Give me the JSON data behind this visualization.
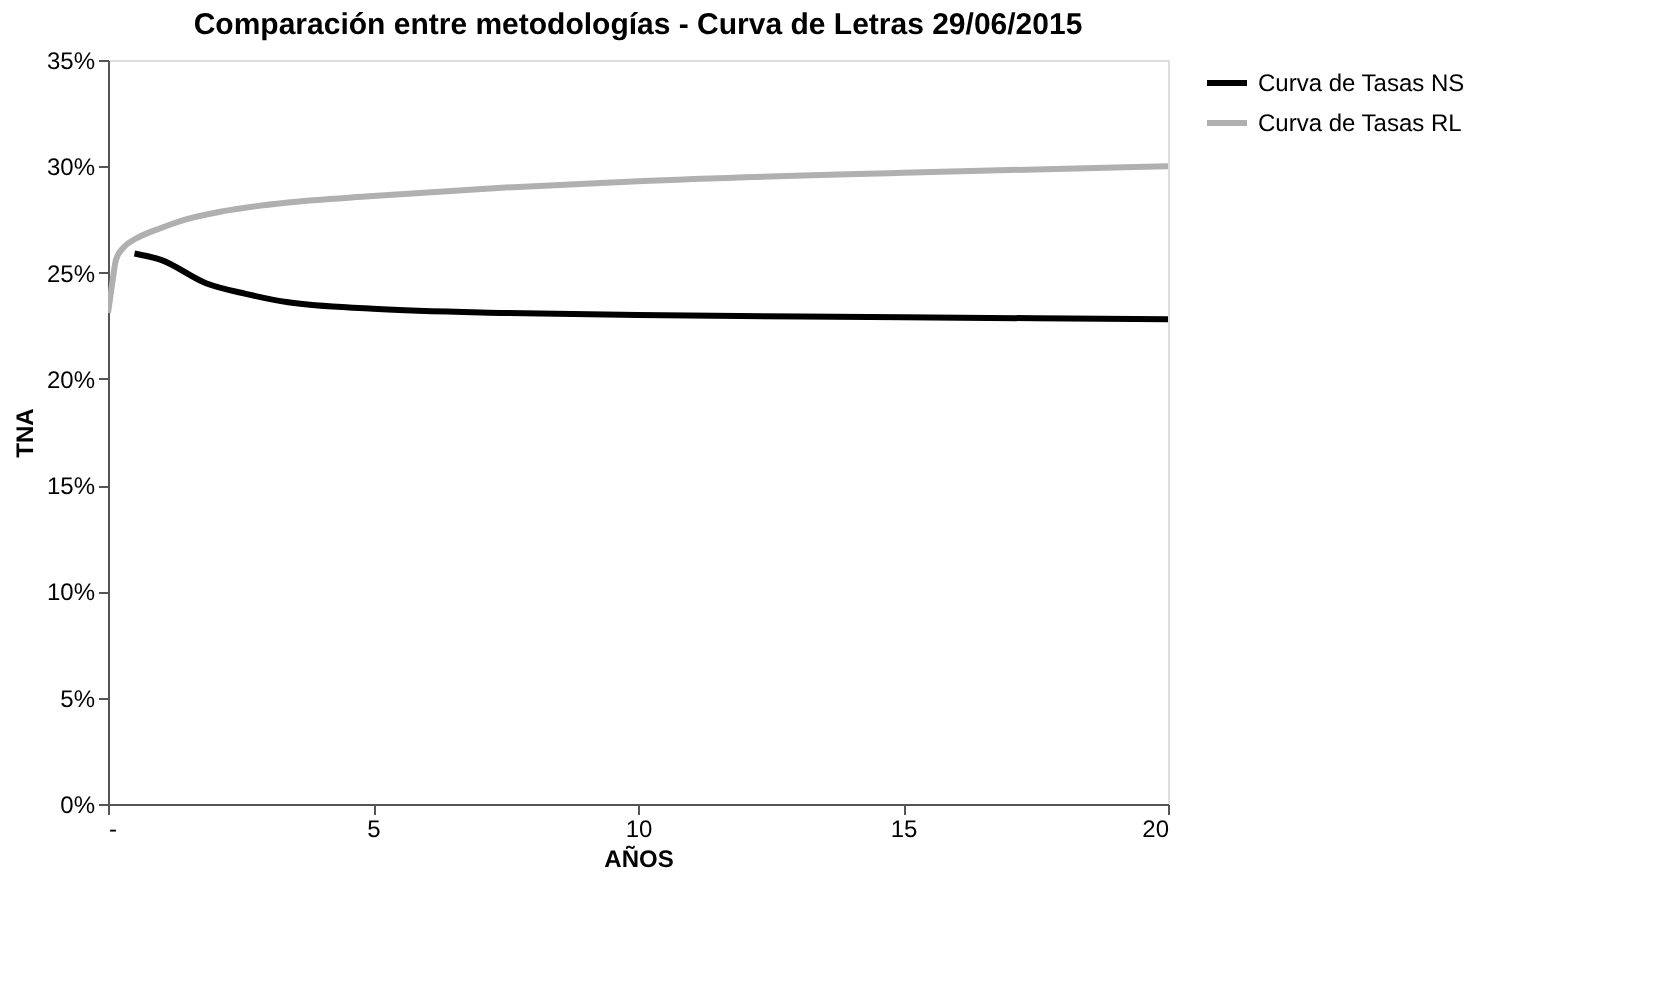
{
  "chart_data": {
    "type": "line",
    "title": "Comparación entre metodologías  - Curva de Letras 29/06/2015",
    "xlabel": "AÑOS",
    "ylabel": "TNA",
    "xlim": [
      0,
      20
    ],
    "xticks": [
      {
        "value": 0,
        "label": "-"
      },
      5,
      10,
      15,
      20
    ],
    "ylim": [
      0,
      0.35
    ],
    "yticks": [
      {
        "value": 0,
        "label": "0%"
      },
      {
        "value": 0.05,
        "label": "5%"
      },
      {
        "value": 0.1,
        "label": "10%"
      },
      {
        "value": 0.15,
        "label": "15%"
      },
      {
        "value": 0.2,
        "label": "20%"
      },
      {
        "value": 0.25,
        "label": "25%"
      },
      {
        "value": 0.3,
        "label": "30%"
      },
      {
        "value": 0.35,
        "label": "35%"
      }
    ],
    "grid": false,
    "legend": "right",
    "marker": "none",
    "line_style": "solid",
    "series": [
      {
        "name": "Curva de Tasas  NS",
        "color": "#000000",
        "x": [
          0.5,
          1.0,
          1.85,
          2.6,
          3.4,
          5,
          7.5,
          10,
          15,
          20
        ],
        "values": [
          0.259,
          0.256,
          0.245,
          0.24,
          0.236,
          0.233,
          0.231,
          0.23,
          0.229,
          0.228
        ]
      },
      {
        "name": "Curva de Tasas  RL",
        "color": "#b0b0b0",
        "x": [
          0,
          0.08,
          0.15,
          0.3,
          0.53,
          1.0,
          1.47,
          2.2,
          3.4,
          5,
          7.5,
          10,
          15,
          20
        ],
        "values": [
          0.231,
          0.245,
          0.256,
          0.262,
          0.266,
          0.271,
          0.275,
          0.279,
          0.283,
          0.286,
          0.29,
          0.293,
          0.297,
          0.3
        ]
      }
    ]
  }
}
